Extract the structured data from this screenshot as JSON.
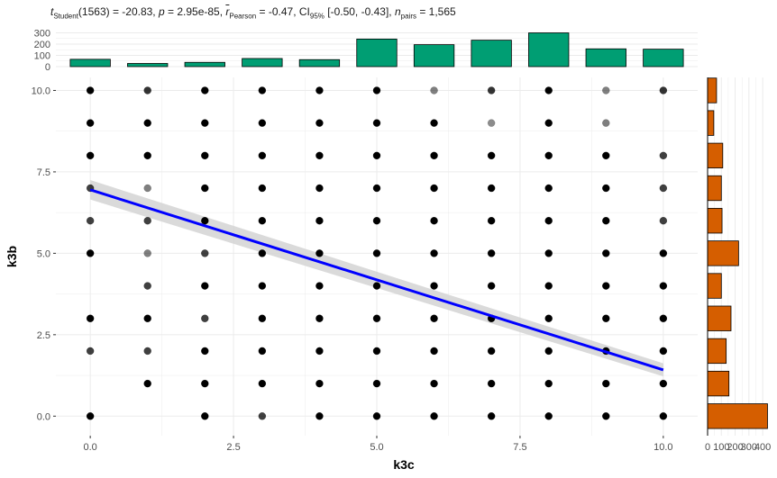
{
  "chart_data": {
    "type": "scatter",
    "title": {
      "prefix": "t",
      "prefix_sub": "Student",
      "stat_text": "(1563) = -20.83, ",
      "p_label": "p",
      "p_text": " = 2.95e-85, ",
      "r_label": "r",
      "r_sub": "Pearson",
      "r_text": " = -0.47, CI",
      "ci_sub": "95%",
      "ci_text": " [-0.50, -0.43], ",
      "n_label": "n",
      "n_sub": "pairs",
      "n_text": " = 1,565"
    },
    "xlabel": "k3c",
    "ylabel": "k3b",
    "xlim": [
      -0.6,
      10.6
    ],
    "ylim": [
      -0.6,
      10.4
    ],
    "x_ticks": [
      "0.0",
      "2.5",
      "5.0",
      "7.5",
      "10.0"
    ],
    "x_tick_values": [
      0,
      2.5,
      5,
      7.5,
      10
    ],
    "y_ticks": [
      "0.0",
      "2.5",
      "5.0",
      "7.5",
      "10.0"
    ],
    "y_tick_values": [
      0,
      2.5,
      5,
      7.5,
      10
    ],
    "grid": true,
    "points": [
      {
        "x": 0,
        "y": 10,
        "a": 1.0
      },
      {
        "x": 1,
        "y": 10,
        "a": 0.8
      },
      {
        "x": 2,
        "y": 10,
        "a": 1.0
      },
      {
        "x": 3,
        "y": 10,
        "a": 1.0
      },
      {
        "x": 4,
        "y": 10,
        "a": 1.0
      },
      {
        "x": 5,
        "y": 10,
        "a": 1.0
      },
      {
        "x": 6,
        "y": 10,
        "a": 0.5
      },
      {
        "x": 7,
        "y": 10,
        "a": 0.8
      },
      {
        "x": 8,
        "y": 10,
        "a": 1.0
      },
      {
        "x": 9,
        "y": 10,
        "a": 0.5
      },
      {
        "x": 10,
        "y": 10,
        "a": 0.8
      },
      {
        "x": 0,
        "y": 9,
        "a": 1.0
      },
      {
        "x": 1,
        "y": 9,
        "a": 1.0
      },
      {
        "x": 2,
        "y": 9,
        "a": 1.0
      },
      {
        "x": 3,
        "y": 9,
        "a": 1.0
      },
      {
        "x": 4,
        "y": 9,
        "a": 1.0
      },
      {
        "x": 5,
        "y": 9,
        "a": 1.0
      },
      {
        "x": 6,
        "y": 9,
        "a": 1.0
      },
      {
        "x": 7,
        "y": 9,
        "a": 0.45
      },
      {
        "x": 8,
        "y": 9,
        "a": 1.0
      },
      {
        "x": 9,
        "y": 9,
        "a": 0.5
      },
      {
        "x": 0,
        "y": 8,
        "a": 1.0
      },
      {
        "x": 1,
        "y": 8,
        "a": 1.0
      },
      {
        "x": 2,
        "y": 8,
        "a": 1.0
      },
      {
        "x": 3,
        "y": 8,
        "a": 1.0
      },
      {
        "x": 4,
        "y": 8,
        "a": 1.0
      },
      {
        "x": 5,
        "y": 8,
        "a": 1.0
      },
      {
        "x": 6,
        "y": 8,
        "a": 1.0
      },
      {
        "x": 7,
        "y": 8,
        "a": 1.0
      },
      {
        "x": 8,
        "y": 8,
        "a": 1.0
      },
      {
        "x": 9,
        "y": 8,
        "a": 1.0
      },
      {
        "x": 10,
        "y": 8,
        "a": 0.75
      },
      {
        "x": 0,
        "y": 7,
        "a": 0.75
      },
      {
        "x": 1,
        "y": 7,
        "a": 0.5
      },
      {
        "x": 2,
        "y": 7,
        "a": 1.0
      },
      {
        "x": 3,
        "y": 7,
        "a": 1.0
      },
      {
        "x": 4,
        "y": 7,
        "a": 1.0
      },
      {
        "x": 5,
        "y": 7,
        "a": 1.0
      },
      {
        "x": 6,
        "y": 7,
        "a": 1.0
      },
      {
        "x": 7,
        "y": 7,
        "a": 1.0
      },
      {
        "x": 8,
        "y": 7,
        "a": 1.0
      },
      {
        "x": 9,
        "y": 7,
        "a": 1.0
      },
      {
        "x": 10,
        "y": 7,
        "a": 0.75
      },
      {
        "x": 0,
        "y": 6,
        "a": 0.75
      },
      {
        "x": 1,
        "y": 6,
        "a": 0.75
      },
      {
        "x": 2,
        "y": 6,
        "a": 1.0
      },
      {
        "x": 3,
        "y": 6,
        "a": 1.0
      },
      {
        "x": 4,
        "y": 6,
        "a": 1.0
      },
      {
        "x": 5,
        "y": 6,
        "a": 1.0
      },
      {
        "x": 6,
        "y": 6,
        "a": 1.0
      },
      {
        "x": 7,
        "y": 6,
        "a": 1.0
      },
      {
        "x": 8,
        "y": 6,
        "a": 1.0
      },
      {
        "x": 9,
        "y": 6,
        "a": 1.0
      },
      {
        "x": 10,
        "y": 6,
        "a": 0.75
      },
      {
        "x": 0,
        "y": 5,
        "a": 1.0
      },
      {
        "x": 1,
        "y": 5,
        "a": 0.5
      },
      {
        "x": 2,
        "y": 5,
        "a": 0.75
      },
      {
        "x": 3,
        "y": 5,
        "a": 1.0
      },
      {
        "x": 4,
        "y": 5,
        "a": 1.0
      },
      {
        "x": 5,
        "y": 5,
        "a": 1.0
      },
      {
        "x": 6,
        "y": 5,
        "a": 1.0
      },
      {
        "x": 7,
        "y": 5,
        "a": 1.0
      },
      {
        "x": 8,
        "y": 5,
        "a": 1.0
      },
      {
        "x": 9,
        "y": 5,
        "a": 1.0
      },
      {
        "x": 10,
        "y": 5,
        "a": 1.0
      },
      {
        "x": 1,
        "y": 4,
        "a": 0.75
      },
      {
        "x": 2,
        "y": 4,
        "a": 1.0
      },
      {
        "x": 3,
        "y": 4,
        "a": 1.0
      },
      {
        "x": 4,
        "y": 4,
        "a": 1.0
      },
      {
        "x": 5,
        "y": 4,
        "a": 1.0
      },
      {
        "x": 6,
        "y": 4,
        "a": 1.0
      },
      {
        "x": 7,
        "y": 4,
        "a": 1.0
      },
      {
        "x": 8,
        "y": 4,
        "a": 1.0
      },
      {
        "x": 9,
        "y": 4,
        "a": 1.0
      },
      {
        "x": 10,
        "y": 4,
        "a": 1.0
      },
      {
        "x": 0,
        "y": 3,
        "a": 1.0
      },
      {
        "x": 1,
        "y": 3,
        "a": 1.0
      },
      {
        "x": 2,
        "y": 3,
        "a": 0.75
      },
      {
        "x": 3,
        "y": 3,
        "a": 1.0
      },
      {
        "x": 4,
        "y": 3,
        "a": 1.0
      },
      {
        "x": 5,
        "y": 3,
        "a": 1.0
      },
      {
        "x": 6,
        "y": 3,
        "a": 1.0
      },
      {
        "x": 7,
        "y": 3,
        "a": 1.0
      },
      {
        "x": 8,
        "y": 3,
        "a": 1.0
      },
      {
        "x": 9,
        "y": 3,
        "a": 1.0
      },
      {
        "x": 10,
        "y": 3,
        "a": 1.0
      },
      {
        "x": 0,
        "y": 2,
        "a": 0.75
      },
      {
        "x": 1,
        "y": 2,
        "a": 0.75
      },
      {
        "x": 2,
        "y": 2,
        "a": 1.0
      },
      {
        "x": 3,
        "y": 2,
        "a": 1.0
      },
      {
        "x": 4,
        "y": 2,
        "a": 1.0
      },
      {
        "x": 5,
        "y": 2,
        "a": 1.0
      },
      {
        "x": 6,
        "y": 2,
        "a": 1.0
      },
      {
        "x": 7,
        "y": 2,
        "a": 1.0
      },
      {
        "x": 8,
        "y": 2,
        "a": 1.0
      },
      {
        "x": 9,
        "y": 2,
        "a": 1.0
      },
      {
        "x": 10,
        "y": 2,
        "a": 1.0
      },
      {
        "x": 1,
        "y": 1,
        "a": 1.0
      },
      {
        "x": 2,
        "y": 1,
        "a": 1.0
      },
      {
        "x": 3,
        "y": 1,
        "a": 1.0
      },
      {
        "x": 4,
        "y": 1,
        "a": 1.0
      },
      {
        "x": 5,
        "y": 1,
        "a": 1.0
      },
      {
        "x": 6,
        "y": 1,
        "a": 1.0
      },
      {
        "x": 7,
        "y": 1,
        "a": 1.0
      },
      {
        "x": 8,
        "y": 1,
        "a": 1.0
      },
      {
        "x": 9,
        "y": 1,
        "a": 1.0
      },
      {
        "x": 10,
        "y": 1,
        "a": 1.0
      },
      {
        "x": 0,
        "y": 0,
        "a": 1.0
      },
      {
        "x": 2,
        "y": 0,
        "a": 1.0
      },
      {
        "x": 3,
        "y": 0,
        "a": 0.75
      },
      {
        "x": 4,
        "y": 0,
        "a": 1.0
      },
      {
        "x": 5,
        "y": 0,
        "a": 1.0
      },
      {
        "x": 6,
        "y": 0,
        "a": 1.0
      },
      {
        "x": 7,
        "y": 0,
        "a": 1.0
      },
      {
        "x": 8,
        "y": 0,
        "a": 1.0
      },
      {
        "x": 9,
        "y": 0,
        "a": 1.0
      },
      {
        "x": 10,
        "y": 0,
        "a": 1.0
      }
    ],
    "regression": {
      "x": [
        0,
        10
      ],
      "y": [
        6.95,
        1.42
      ],
      "ci_low": [
        6.65,
        1.22
      ],
      "ci_high": [
        7.25,
        1.62
      ],
      "color": "#0000ff",
      "band_color": "#d3d3d3"
    },
    "marginal_x": {
      "type": "bar",
      "x": [
        0,
        1,
        2,
        3,
        4,
        5,
        6,
        7,
        8,
        9,
        10
      ],
      "counts": [
        65,
        28,
        38,
        72,
        62,
        245,
        195,
        235,
        300,
        158,
        155
      ],
      "ticks": [
        "0",
        "100",
        "200",
        "300"
      ],
      "tick_values": [
        0,
        100,
        200,
        300
      ],
      "ylim": [
        0,
        320
      ],
      "color": "#009e73"
    },
    "marginal_y": {
      "type": "bar",
      "y": [
        0,
        1,
        2,
        3,
        4,
        5,
        6,
        7,
        8,
        9,
        10
      ],
      "counts": [
        435,
        155,
        135,
        170,
        100,
        225,
        105,
        100,
        110,
        45,
        65
      ],
      "ticks": [
        "0",
        "100",
        "200",
        "300",
        "400"
      ],
      "tick_values": [
        0,
        100,
        200,
        300,
        400
      ],
      "xlim": [
        0,
        445
      ],
      "color": "#d55e00"
    }
  }
}
